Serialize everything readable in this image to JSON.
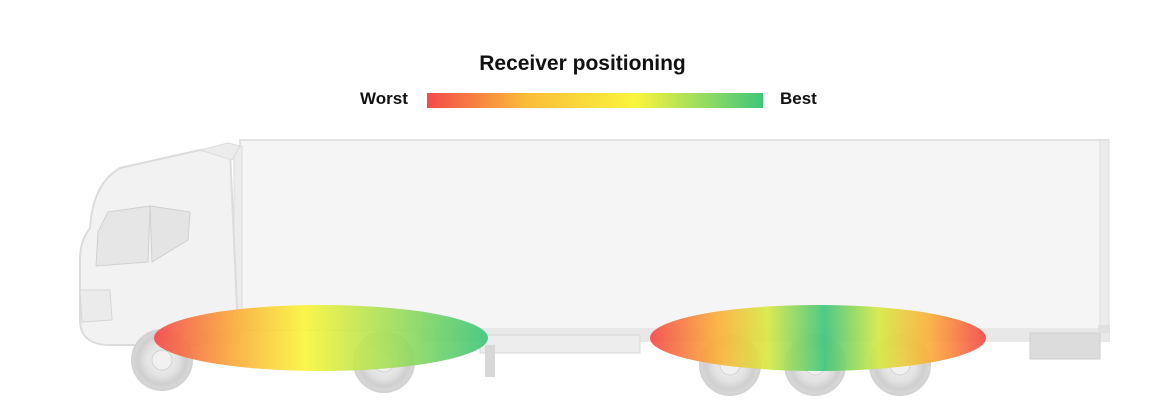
{
  "title": "Receiver positioning",
  "legend": {
    "worst_label": "Worst",
    "best_label": "Best",
    "colors": [
      "#f44a4a",
      "#fbb03b",
      "#faf53c",
      "#a8df5a",
      "#3fc67c"
    ]
  },
  "vehicle": {
    "type": "truck-with-trailer",
    "body_color": "#f3f3f3",
    "outline_color": "#d8d8d8"
  },
  "zones": [
    {
      "name": "tractor-zone",
      "gradient": [
        "#f44a4a",
        "#fbb03b",
        "#faf53c",
        "#a8df5a",
        "#3fc67c"
      ]
    },
    {
      "name": "trailer-zone",
      "gradient": [
        "#f44a4a",
        "#faf53c",
        "#3fc67c",
        "#faf53c",
        "#f44a4a"
      ]
    }
  ]
}
